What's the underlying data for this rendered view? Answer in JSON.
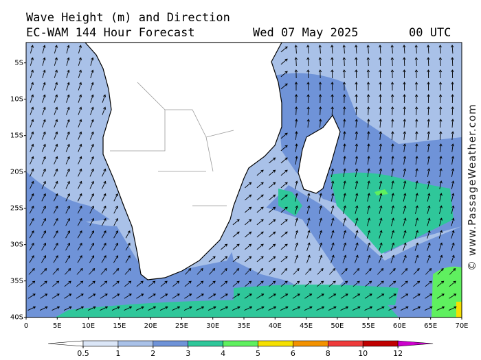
{
  "header": {
    "title": "Wave Height (m) and Direction",
    "model": "EC-WAM 144 Hour Forecast",
    "date": "Wed 07 May 2025",
    "time": "00 UTC"
  },
  "map": {
    "lat_labels": [
      "5S",
      "10S",
      "15S",
      "20S",
      "25S",
      "30S",
      "35S",
      "40S"
    ],
    "lon_labels": [
      "0",
      "5E",
      "10E",
      "15E",
      "20E",
      "25E",
      "30E",
      "35E",
      "40E",
      "45E",
      "50E",
      "55E",
      "60E",
      "65E",
      "70E"
    ]
  },
  "legend": {
    "ticks": [
      0.5,
      1,
      2,
      3,
      4,
      5,
      6,
      8,
      10,
      12
    ],
    "colors": [
      "#ffffff",
      "#dbe6f7",
      "#a9c1e8",
      "#6f93d8",
      "#2fc79a",
      "#5ff05f",
      "#f5e000",
      "#f39200",
      "#ee3b3b",
      "#c00000",
      "#cc00cc"
    ]
  },
  "watermark": "© www.PassageWeather.com"
}
